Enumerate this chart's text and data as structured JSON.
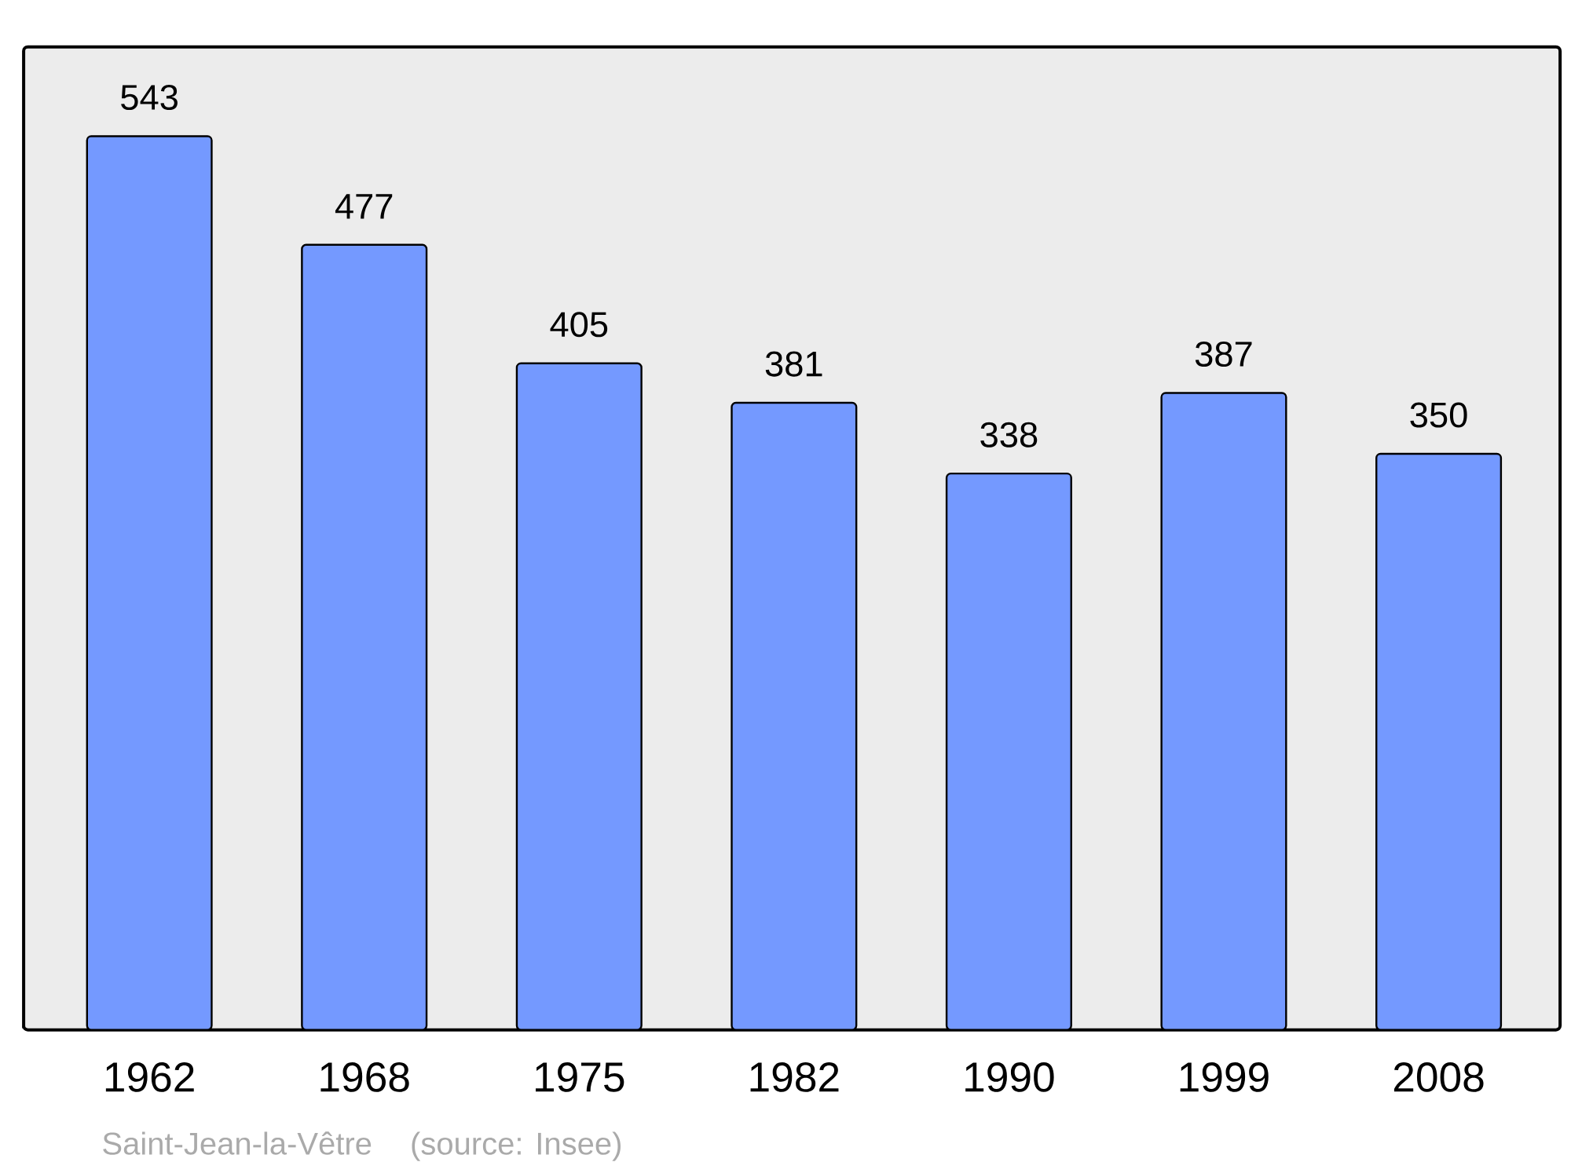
{
  "chart_data": {
    "type": "bar",
    "categories": [
      "1962",
      "1968",
      "1975",
      "1982",
      "1990",
      "1999",
      "2008"
    ],
    "values": [
      543,
      477,
      405,
      381,
      338,
      387,
      350
    ],
    "color": "#7499ff",
    "data_labels": true,
    "annotations": [
      "Saint-Jean-la-Vêtre",
      "(source: Insee)"
    ]
  }
}
